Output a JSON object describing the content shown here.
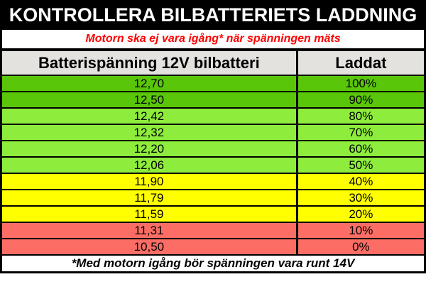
{
  "header": {
    "title": "KONTROLLERA BILBATTERIETS LADDNING"
  },
  "subtitle": {
    "text": "Motorn ska ej vara igång* när spänningen mäts"
  },
  "footer": {
    "text": "*Med motorn igång bör spänningen vara runt 14V"
  },
  "colors": {
    "title_bar_bg": "#000000",
    "title_text": "#FFFFFF",
    "header_row_bg": "#E4E2DF",
    "border": "#000000",
    "warning_text": "#FF0000",
    "charge_high_green": "#5AC60A",
    "charge_good_green": "#8EEC3C",
    "charge_medium_yellow": "#FFFF00",
    "charge_low_red": "#FB6D65"
  },
  "chart_data": {
    "type": "table",
    "title": "KONTROLLERA BILBATTERIETS LADDNING",
    "subtitle": "Motorn ska ej vara igång* när spänningen mäts",
    "footnote": "*Med motorn igång bör spänningen vara runt 14V",
    "columns": [
      "Batterispänning 12V bilbatteri",
      "Laddat"
    ],
    "rows": [
      {
        "voltage": "12,70",
        "charge": "100%",
        "band_color": "#5AC60A"
      },
      {
        "voltage": "12,50",
        "charge": "90%",
        "band_color": "#5AC60A"
      },
      {
        "voltage": "12,42",
        "charge": "80%",
        "band_color": "#8EEC3C"
      },
      {
        "voltage": "12,32",
        "charge": "70%",
        "band_color": "#8EEC3C"
      },
      {
        "voltage": "12,20",
        "charge": "60%",
        "band_color": "#8EEC3C"
      },
      {
        "voltage": "12,06",
        "charge": "50%",
        "band_color": "#8EEC3C"
      },
      {
        "voltage": "11,90",
        "charge": "40%",
        "band_color": "#FFFF00"
      },
      {
        "voltage": "11,79",
        "charge": "30%",
        "band_color": "#FFFF00"
      },
      {
        "voltage": "11,59",
        "charge": "20%",
        "band_color": "#FFFF00"
      },
      {
        "voltage": "11,31",
        "charge": "10%",
        "band_color": "#FB6D65"
      },
      {
        "voltage": "10,50",
        "charge": "0%",
        "band_color": "#FB6D65"
      }
    ]
  }
}
